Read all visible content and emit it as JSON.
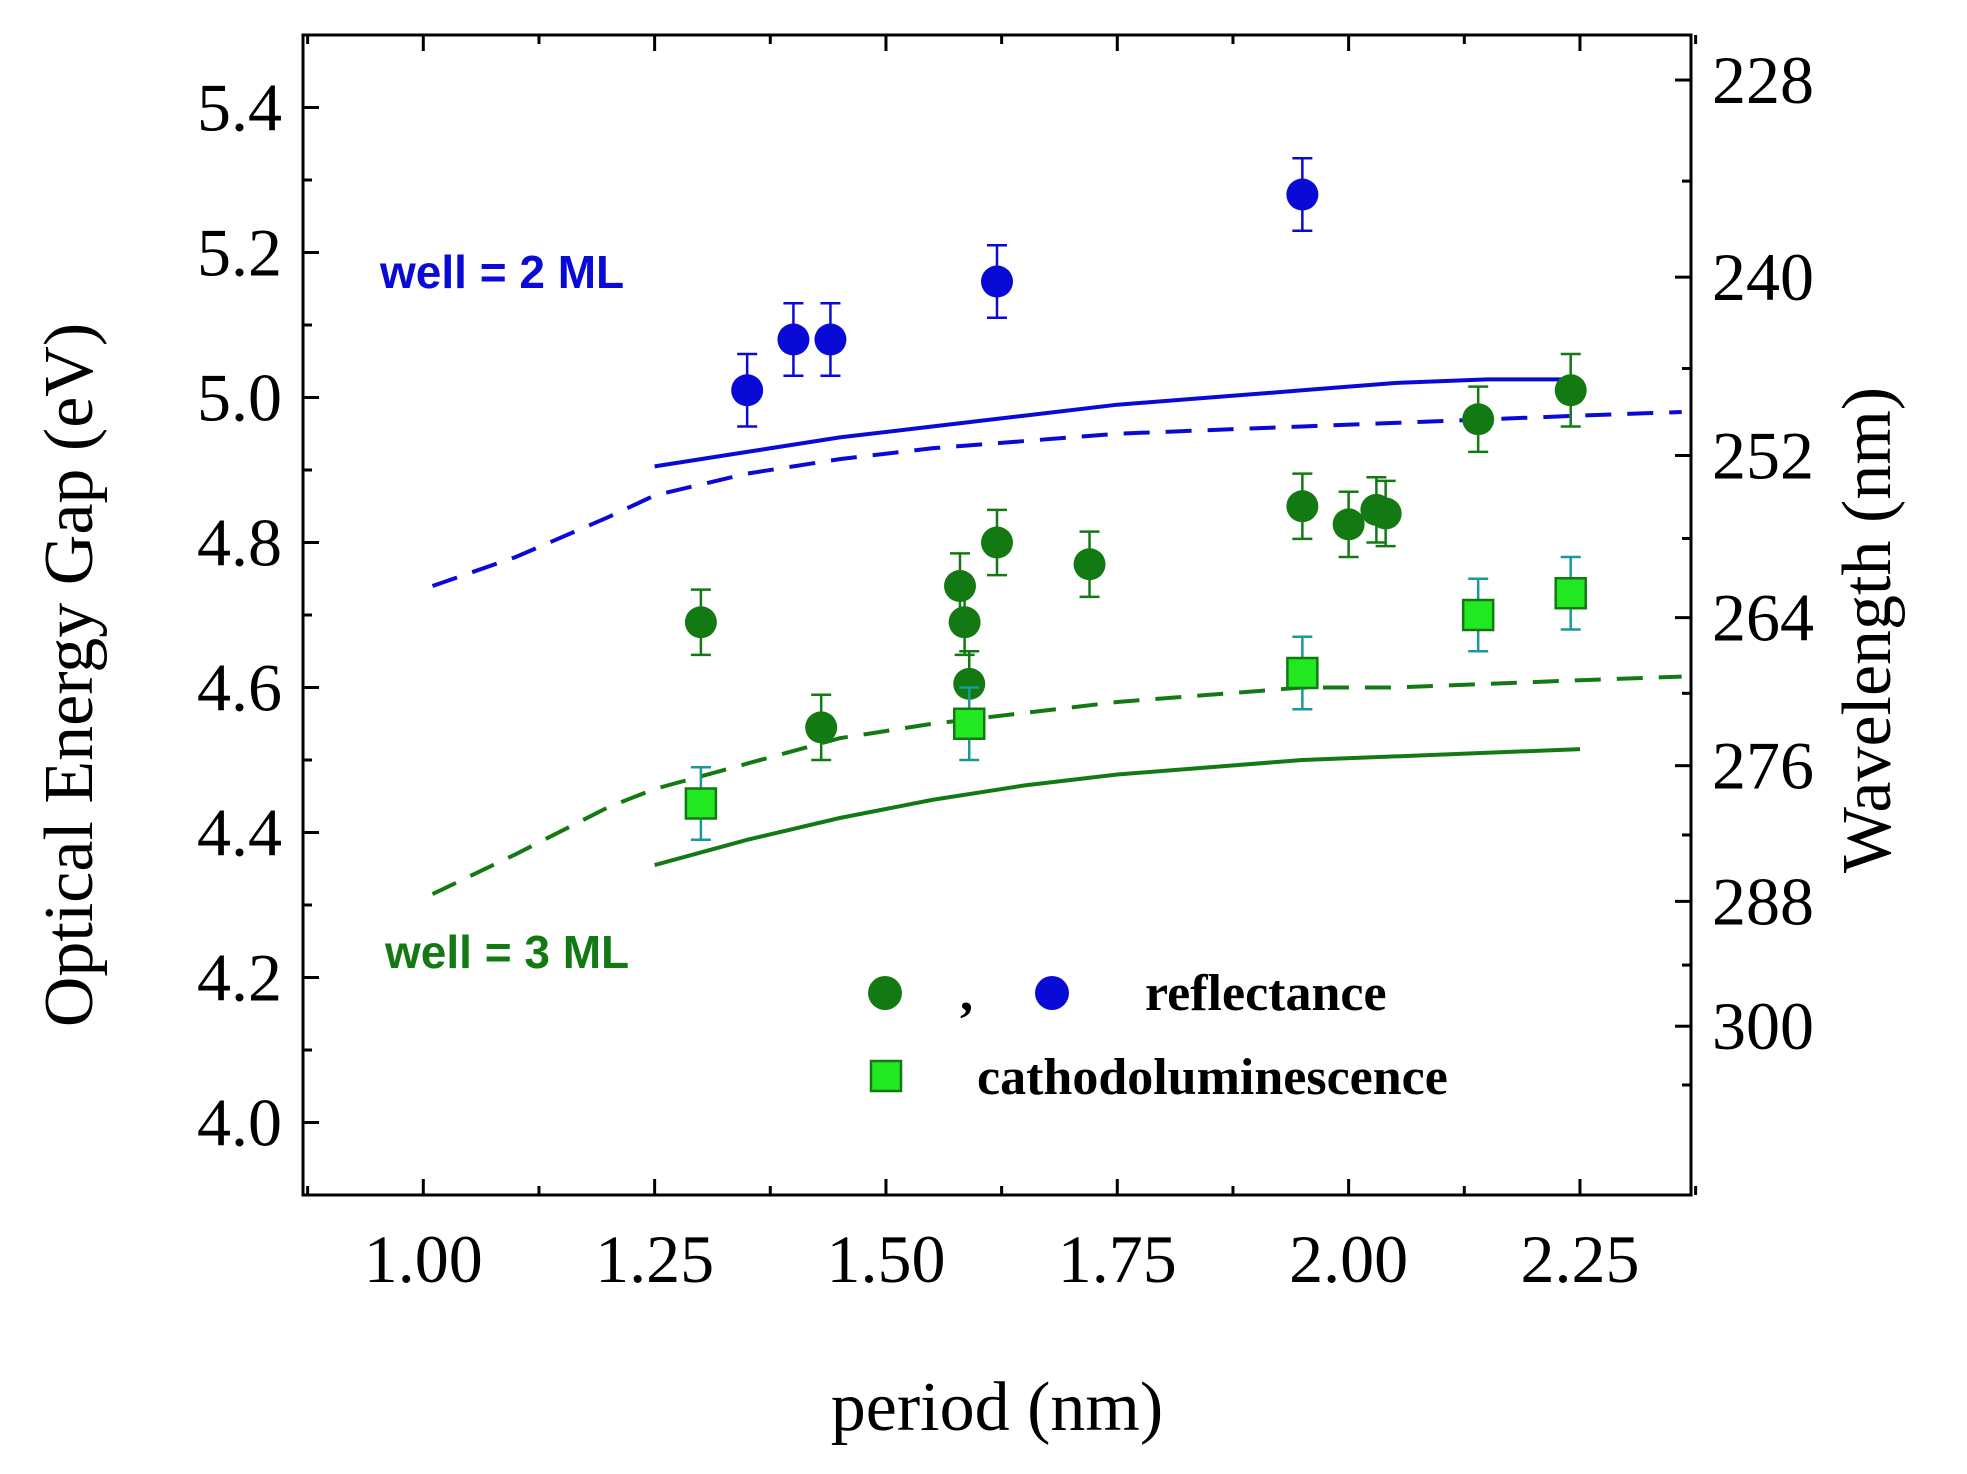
{
  "chart_data": {
    "type": "scatter",
    "xlabel": "period (nm)",
    "ylabel": "Optical Energy Gap (eV)",
    "y2label": "Wavelength (nm)",
    "xlim": [
      0.87,
      2.37
    ],
    "ylim": [
      3.9,
      5.5
    ],
    "x_ticks": [
      "1.00",
      "1.25",
      "1.50",
      "1.75",
      "2.00",
      "2.25"
    ],
    "x_tick_values": [
      1.0,
      1.25,
      1.5,
      1.75,
      2.0,
      2.25
    ],
    "y_ticks": [
      "4.0",
      "4.2",
      "4.4",
      "4.6",
      "4.8",
      "5.0",
      "5.2",
      "5.4"
    ],
    "y_tick_values": [
      4.0,
      4.2,
      4.4,
      4.6,
      4.8,
      5.0,
      5.2,
      5.4
    ],
    "y2_ticks": [
      "228",
      "240",
      "252",
      "264",
      "276",
      "288",
      "300"
    ],
    "y2_tick_values": [
      228,
      240,
      252,
      264,
      276,
      288,
      300
    ],
    "annotations": {
      "well2": "well = 2 ML",
      "well3": "well = 3 ML"
    },
    "legend": {
      "position": "bottom-right",
      "reflectance_sep": ",",
      "reflectance": "reflectance",
      "cathodoluminescence": "cathodoluminescence"
    },
    "colors": {
      "blue": "#0a0ad6",
      "dark_green": "#137a13",
      "light_green": "#22e822",
      "teal": "#189a9a",
      "axis": "#000000"
    },
    "series": [
      {
        "name": "reflectance (well = 2 ML)",
        "kind": "circle",
        "color": "blue",
        "points": [
          {
            "x": 1.35,
            "y": 5.01,
            "err": 0.05
          },
          {
            "x": 1.4,
            "y": 5.08,
            "err": 0.05
          },
          {
            "x": 1.44,
            "y": 5.08,
            "err": 0.05
          },
          {
            "x": 1.62,
            "y": 5.16,
            "err": 0.05
          },
          {
            "x": 1.95,
            "y": 5.28,
            "err": 0.05
          }
        ]
      },
      {
        "name": "reflectance (well = 3 ML)",
        "kind": "circle",
        "color": "dark_green",
        "points": [
          {
            "x": 1.3,
            "y": 4.69,
            "err": 0.045
          },
          {
            "x": 1.43,
            "y": 4.545,
            "err": 0.045
          },
          {
            "x": 1.58,
            "y": 4.74,
            "err": 0.045
          },
          {
            "x": 1.585,
            "y": 4.69,
            "err": 0.045
          },
          {
            "x": 1.59,
            "y": 4.605,
            "err": 0.045
          },
          {
            "x": 1.62,
            "y": 4.8,
            "err": 0.045
          },
          {
            "x": 1.72,
            "y": 4.77,
            "err": 0.045
          },
          {
            "x": 1.95,
            "y": 4.85,
            "err": 0.045
          },
          {
            "x": 2.0,
            "y": 4.825,
            "err": 0.045
          },
          {
            "x": 2.03,
            "y": 4.845,
            "err": 0.045
          },
          {
            "x": 2.04,
            "y": 4.84,
            "err": 0.045
          },
          {
            "x": 2.14,
            "y": 4.97,
            "err": 0.045
          },
          {
            "x": 2.24,
            "y": 5.01,
            "err": 0.05
          }
        ]
      },
      {
        "name": "cathodoluminescence",
        "kind": "square",
        "color": "light_green",
        "points": [
          {
            "x": 1.3,
            "y": 4.44,
            "err": 0.05
          },
          {
            "x": 1.59,
            "y": 4.55,
            "err": 0.05
          },
          {
            "x": 1.95,
            "y": 4.62,
            "err": 0.05
          },
          {
            "x": 2.14,
            "y": 4.7,
            "err": 0.05
          },
          {
            "x": 2.24,
            "y": 4.73,
            "err": 0.05
          }
        ]
      }
    ],
    "curves": [
      {
        "name": "well = 2 ML solid",
        "color": "blue",
        "dashed": false,
        "x": [
          1.25,
          1.35,
          1.45,
          1.55,
          1.65,
          1.75,
          1.85,
          1.95,
          2.05,
          2.15,
          2.25
        ],
        "y": [
          4.905,
          4.925,
          4.945,
          4.96,
          4.975,
          4.99,
          5.0,
          5.01,
          5.02,
          5.025,
          5.025
        ]
      },
      {
        "name": "well = 2 ML dashed",
        "color": "blue",
        "dashed": true,
        "x": [
          1.01,
          1.1,
          1.2,
          1.25,
          1.35,
          1.45,
          1.55,
          1.65,
          1.75,
          1.85,
          1.95,
          2.05,
          2.15,
          2.25,
          2.36
        ],
        "y": [
          4.74,
          4.78,
          4.835,
          4.865,
          4.895,
          4.915,
          4.93,
          4.94,
          4.95,
          4.955,
          4.96,
          4.965,
          4.97,
          4.975,
          4.98
        ]
      },
      {
        "name": "well = 3 ML solid",
        "color": "dark_green",
        "dashed": false,
        "x": [
          1.25,
          1.35,
          1.45,
          1.55,
          1.65,
          1.75,
          1.85,
          1.95,
          2.05,
          2.15,
          2.25
        ],
        "y": [
          4.355,
          4.39,
          4.42,
          4.445,
          4.465,
          4.48,
          4.49,
          4.5,
          4.505,
          4.51,
          4.515
        ]
      },
      {
        "name": "well = 3 ML dashed",
        "color": "dark_green",
        "dashed": true,
        "x": [
          1.01,
          1.1,
          1.2,
          1.25,
          1.35,
          1.45,
          1.55,
          1.65,
          1.75,
          1.85,
          1.95,
          2.05,
          2.15,
          2.25,
          2.36
        ],
        "y": [
          4.315,
          4.37,
          4.435,
          4.46,
          4.495,
          4.53,
          4.55,
          4.565,
          4.58,
          4.59,
          4.6,
          4.6,
          4.605,
          4.61,
          4.615
        ]
      }
    ]
  }
}
